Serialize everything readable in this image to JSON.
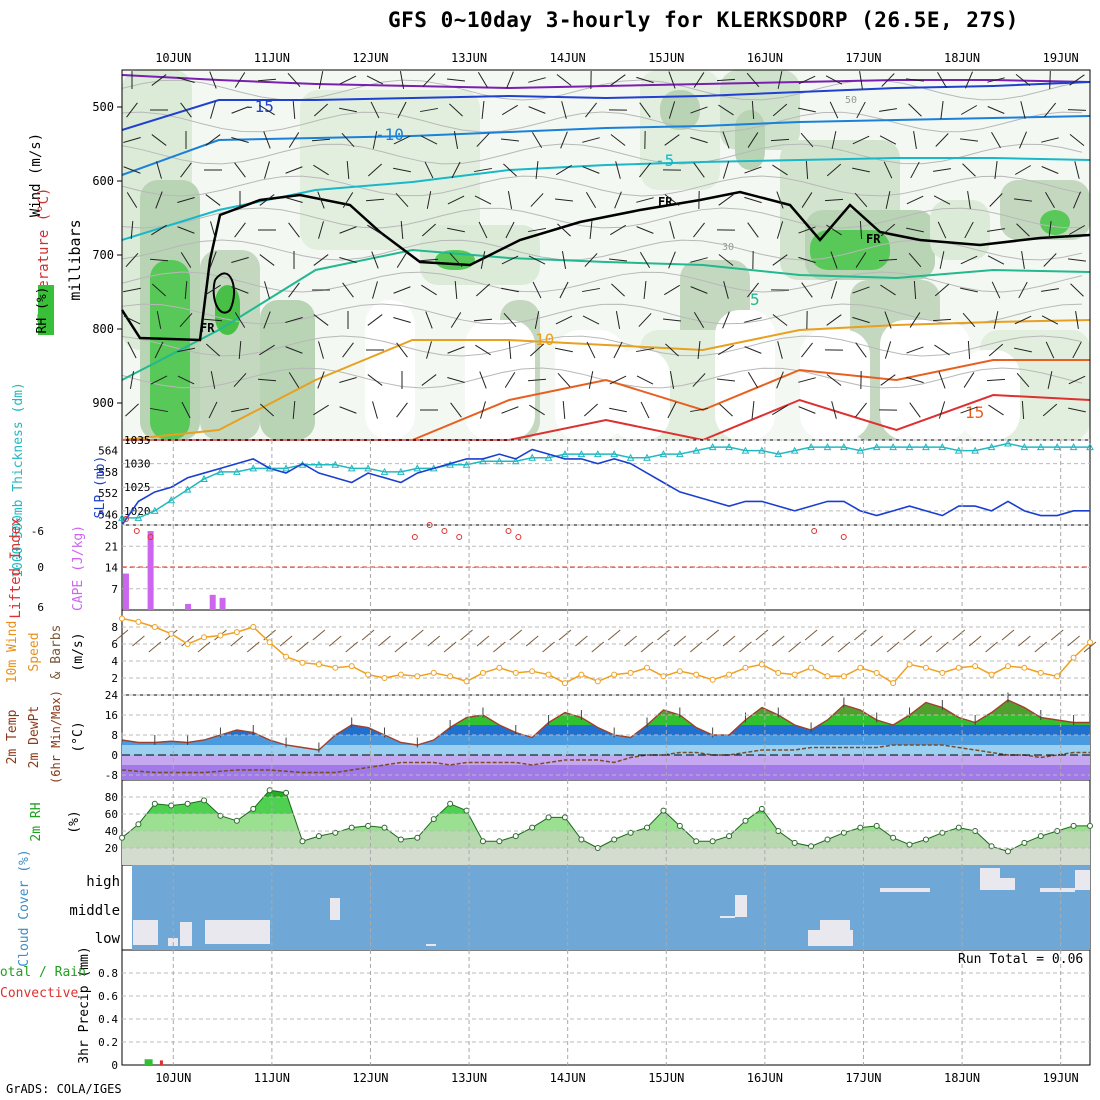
{
  "title": "GFS 0~10day 3-hourly for KLERKSDORP (26.5E, 27S)",
  "credit": "GrADS: COLA/IGES",
  "chart_data": [
    {
      "id": "upper",
      "type": "heatmap",
      "ylabels": [
        "Wind (m/s)",
        "Temperature (°C)",
        "RH (%)",
        "millibars"
      ],
      "yticks": [
        500,
        600,
        700,
        800,
        900
      ],
      "ylim": [
        950,
        450
      ],
      "temp_contour_labels": [
        "-15",
        "-10",
        "-5",
        "5",
        "10",
        "15"
      ],
      "freezing_label": "FR",
      "rh_labels": [
        "30",
        "50"
      ]
    },
    {
      "id": "slp",
      "type": "line",
      "ylabel_left": "1000-500mb Thickness (dm)",
      "ylabel_right": "SLP (mb)",
      "thickness_ticks": [
        546,
        552,
        558,
        564
      ],
      "slp_ticks": [
        1020,
        1025,
        1030,
        1035
      ],
      "slp_ylim": [
        1017,
        1035
      ],
      "thickness_ylim": [
        543,
        567
      ],
      "slp": [
        1017,
        1022,
        1024,
        1025,
        1027,
        1028,
        1029,
        1030,
        1031,
        1029,
        1028,
        1030,
        1028,
        1027,
        1026,
        1028,
        1027,
        1026,
        1028,
        1029,
        1030,
        1031,
        1031,
        1032,
        1031,
        1033,
        1032,
        1031,
        1031,
        1030,
        1031,
        1030,
        1028,
        1026,
        1024,
        1023,
        1022,
        1021,
        1022,
        1022,
        1021,
        1020,
        1021,
        1022,
        1022,
        1020,
        1019,
        1020,
        1021,
        1020,
        1019,
        1021,
        1021,
        1020,
        1022,
        1020,
        1019,
        1019,
        1020,
        1020
      ],
      "thickness": [
        545,
        545,
        547,
        550,
        553,
        556,
        558,
        558,
        559,
        559,
        559,
        560,
        560,
        560,
        559,
        559,
        558,
        558,
        559,
        559,
        560,
        560,
        561,
        561,
        561,
        562,
        562,
        563,
        563,
        563,
        563,
        562,
        562,
        563,
        563,
        564,
        565,
        565,
        564,
        564,
        563,
        564,
        565,
        565,
        565,
        564,
        565,
        565,
        565,
        565,
        565,
        564,
        564,
        565,
        566,
        565,
        565,
        565,
        565,
        565
      ]
    },
    {
      "id": "cape",
      "type": "bar",
      "ylabel_left": "Lifted Index",
      "ylabel_right": "CAPE (J/kg)",
      "li_ticks": [
        "6",
        "0",
        "-6"
      ],
      "cape_ticks": [
        7,
        14,
        21,
        28
      ],
      "cape_ylim": [
        0,
        28
      ],
      "cape_bars": [
        {
          "day": 9.52,
          "v": 12
        },
        {
          "day": 9.77,
          "v": 26
        },
        {
          "day": 10.15,
          "v": 2
        },
        {
          "day": 10.4,
          "v": 5
        },
        {
          "day": 10.5,
          "v": 4
        }
      ],
      "li_points": [
        {
          "day": 9.52,
          "v": -8
        },
        {
          "day": 9.63,
          "v": -6
        },
        {
          "day": 9.77,
          "v": -5
        },
        {
          "day": 12.45,
          "v": -5
        },
        {
          "day": 12.6,
          "v": -7
        },
        {
          "day": 12.75,
          "v": -6
        },
        {
          "day": 12.9,
          "v": -5
        },
        {
          "day": 13.4,
          "v": -6
        },
        {
          "day": 13.5,
          "v": -5
        },
        {
          "day": 16.5,
          "v": -6
        },
        {
          "day": 16.8,
          "v": -5
        }
      ]
    },
    {
      "id": "wind10m",
      "type": "line",
      "ylabels": [
        "10m Wind",
        "Speed",
        "& Barbs",
        "(m/s)"
      ],
      "yticks": [
        2,
        4,
        6,
        8
      ],
      "ylim": [
        0,
        10
      ],
      "speed": [
        9,
        8.6,
        8,
        7.2,
        6,
        6.8,
        7,
        7.4,
        8,
        6.2,
        4.5,
        3.8,
        3.6,
        3.2,
        3.4,
        2.4,
        2,
        2.4,
        2.2,
        2.6,
        2.2,
        1.6,
        2.6,
        3.2,
        2.6,
        2.8,
        2.4,
        1.4,
        2.4,
        1.6,
        2.4,
        2.6,
        3.2,
        2.2,
        2.8,
        2.4,
        1.8,
        2.4,
        3.2,
        3.6,
        2.6,
        2.4,
        3.2,
        2.2,
        2.2,
        3.2,
        2.6,
        1.4,
        3.6,
        3.2,
        2.6,
        3.2,
        3.4,
        2.4,
        3.4,
        3.2,
        2.6,
        2.2,
        4.4,
        6.2
      ]
    },
    {
      "id": "temp",
      "type": "area",
      "ylabels": [
        "2m Temp",
        "2m DewPt",
        "(6hr Min/Max)",
        "(°C)"
      ],
      "yticks": [
        -8,
        0,
        8,
        16,
        24
      ],
      "ylim": [
        -10,
        24
      ],
      "temperature": [
        6,
        5,
        5,
        5.5,
        5,
        6,
        8,
        10,
        9,
        6,
        4,
        3,
        2,
        8,
        12,
        11,
        8,
        5,
        4,
        6,
        11,
        15,
        16,
        12,
        9,
        7,
        13,
        17,
        15,
        11,
        8,
        7,
        12,
        18,
        16,
        11,
        8,
        8,
        14,
        19,
        16,
        12,
        10,
        14,
        20,
        18,
        14,
        12,
        16,
        21,
        19,
        15,
        13,
        17,
        22,
        19,
        15,
        14,
        13,
        13
      ],
      "dewpoint": [
        -6,
        -6.5,
        -7,
        -7,
        -7,
        -7,
        -6.5,
        -6,
        -6,
        -6,
        -6.5,
        -7,
        -7,
        -7,
        -6,
        -5,
        -4,
        -3,
        -3,
        -3,
        -4,
        -3,
        -3,
        -3,
        -3,
        -4,
        -3,
        -2,
        -2,
        -2,
        -3,
        -1,
        0,
        0,
        1,
        1,
        0,
        0,
        1,
        2,
        2,
        2,
        3,
        3,
        3,
        3,
        3,
        4,
        4,
        4,
        4,
        3,
        2,
        1,
        0,
        0,
        -1,
        0,
        1,
        1
      ]
    },
    {
      "id": "rh",
      "type": "area",
      "ylabels": [
        "2m RH",
        "(%)"
      ],
      "yticks": [
        20,
        40,
        60,
        80
      ],
      "ylim": [
        0,
        100
      ],
      "rh": [
        32,
        48,
        72,
        70,
        72,
        76,
        58,
        52,
        66,
        88,
        85,
        28,
        34,
        38,
        44,
        46,
        44,
        30,
        32,
        54,
        72,
        64,
        28,
        28,
        34,
        44,
        56,
        56,
        30,
        20,
        30,
        38,
        44,
        64,
        46,
        28,
        28,
        34,
        52,
        66,
        40,
        26,
        22,
        30,
        38,
        44,
        46,
        32,
        24,
        30,
        38,
        44,
        40,
        22,
        16,
        26,
        34,
        40,
        46,
        46
      ]
    },
    {
      "id": "cloud",
      "type": "bar",
      "ylabel": "Cloud Cover (%)",
      "levels": [
        "high",
        "middle",
        "low"
      ]
    },
    {
      "id": "precip",
      "type": "bar",
      "ylabels": [
        "3hr Precip (mm)",
        "Total / Rain",
        "Convective"
      ],
      "yticks": [
        "0",
        "0.2",
        "0.4",
        "0.6",
        "0.8"
      ],
      "ylim": [
        0,
        1
      ],
      "total": [
        {
          "day": 9.75,
          "v": 0.05
        }
      ],
      "convective": [
        {
          "day": 9.88,
          "v": 0.04
        }
      ],
      "run_total_label": "Run Total = 0.06"
    }
  ],
  "x_axis": {
    "day_labels": [
      "10JUN",
      "11JUN",
      "12JUN",
      "13JUN",
      "14JUN",
      "15JUN",
      "16JUN",
      "17JUN",
      "18JUN",
      "19JUN"
    ],
    "xlim": [
      9.48,
      19.3
    ]
  },
  "colors": {
    "slp": "#1a3fd0",
    "thickness": "#22b8c0",
    "cape": "#cc66ee",
    "li": "#dd3030",
    "wind_speed": "#f0a020",
    "barb": "#7a5a3a",
    "cloud_bg": "#6fa8d6",
    "rh_light": "#c8e6c4",
    "rh_dark": "#38c038",
    "fr_line": "#000000"
  }
}
